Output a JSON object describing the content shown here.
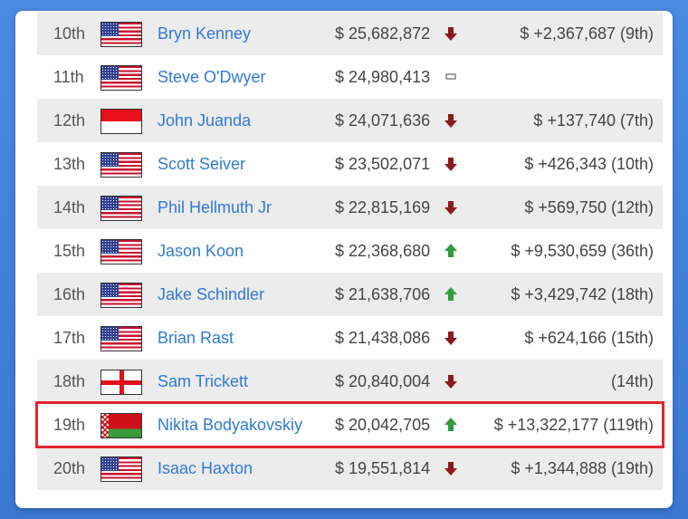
{
  "rows": [
    {
      "rank": "10th",
      "flag": "us",
      "name": "Bryn Kenney",
      "amount": "$ 25,682,872",
      "trend": "down",
      "change": "$ +2,367,687 (9th)"
    },
    {
      "rank": "11th",
      "flag": "us",
      "name": "Steve O'Dwyer",
      "amount": "$ 24,980,413",
      "trend": "same",
      "change": ""
    },
    {
      "rank": "12th",
      "flag": "id",
      "name": "John Juanda",
      "amount": "$ 24,071,636",
      "trend": "down",
      "change": "$ +137,740 (7th)"
    },
    {
      "rank": "13th",
      "flag": "us",
      "name": "Scott Seiver",
      "amount": "$ 23,502,071",
      "trend": "down",
      "change": "$ +426,343 (10th)"
    },
    {
      "rank": "14th",
      "flag": "us",
      "name": "Phil Hellmuth Jr",
      "amount": "$ 22,815,169",
      "trend": "down",
      "change": "$ +569,750 (12th)"
    },
    {
      "rank": "15th",
      "flag": "us",
      "name": "Jason Koon",
      "amount": "$ 22,368,680",
      "trend": "up",
      "change": "$ +9,530,659 (36th)"
    },
    {
      "rank": "16th",
      "flag": "us",
      "name": "Jake Schindler",
      "amount": "$ 21,638,706",
      "trend": "up",
      "change": "$ +3,429,742 (18th)"
    },
    {
      "rank": "17th",
      "flag": "us",
      "name": "Brian Rast",
      "amount": "$ 21,438,086",
      "trend": "down",
      "change": "$ +624,166 (15th)"
    },
    {
      "rank": "18th",
      "flag": "en",
      "name": "Sam Trickett",
      "amount": "$ 20,840,004",
      "trend": "down",
      "change": "(14th)"
    },
    {
      "rank": "19th",
      "flag": "by",
      "name": "Nikita Bodyakovskiy",
      "amount": "$ 20,042,705",
      "trend": "up",
      "change": "$ +13,322,177 (119th)",
      "highlighted": true
    },
    {
      "rank": "20th",
      "flag": "us",
      "name": "Isaac Haxton",
      "amount": "$ 19,551,814",
      "trend": "down",
      "change": "$ +1,344,888 (19th)"
    }
  ],
  "colors": {
    "link": "#2f7ad6",
    "up": "#2e9e3a",
    "down": "#8b1a1a",
    "highlight": "#e3262d",
    "stripe": "#ececec"
  }
}
